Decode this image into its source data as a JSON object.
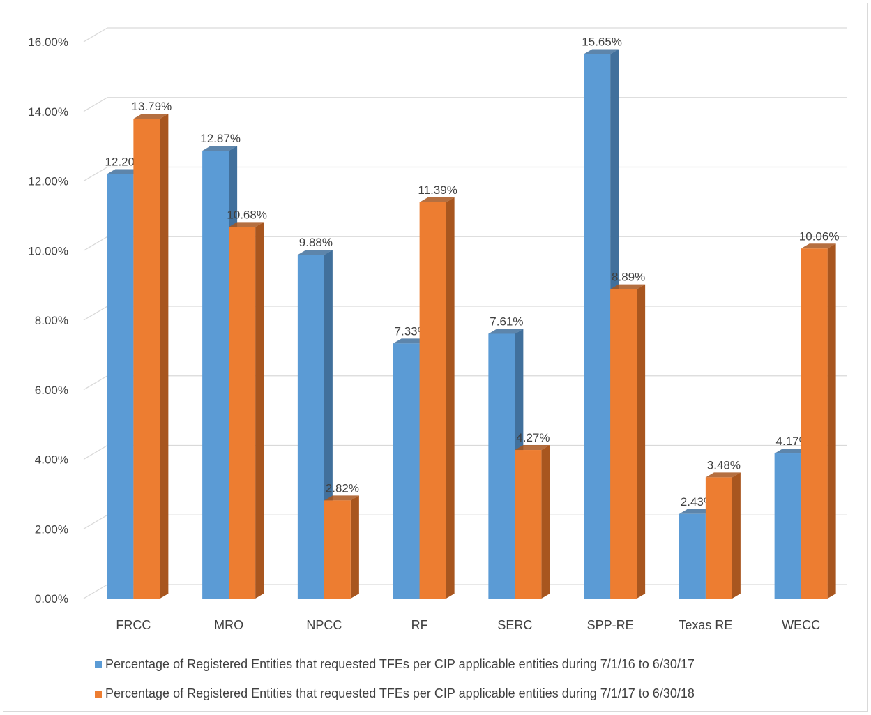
{
  "chart_data": {
    "type": "bar",
    "title": "",
    "xlabel": "",
    "ylabel": "",
    "ylim": [
      0,
      0.16
    ],
    "ytick_step": 0.02,
    "grid": true,
    "legend_position": "bottom",
    "categories": [
      "FRCC",
      "MRO",
      "NPCC",
      "RF",
      "SERC",
      "SPP-RE",
      "Texas RE",
      "WECC"
    ],
    "y_tick_labels": [
      "0.00%",
      "2.00%",
      "4.00%",
      "6.00%",
      "8.00%",
      "10.00%",
      "12.00%",
      "14.00%",
      "16.00%"
    ],
    "series": [
      {
        "name": "Percentage of Registered Entities that requested TFEs per CIP applicable entities during 7/1/16 to 6/30/17",
        "color": "#5B9BD5",
        "side_color": "#41709C",
        "values": [
          0.122,
          0.1287,
          0.0988,
          0.0733,
          0.0761,
          0.1565,
          0.0243,
          0.0417
        ],
        "labels": [
          "12.20%",
          "12.87%",
          "9.88%",
          "7.33%",
          "7.61%",
          "15.65%",
          "2.43%",
          "4.17%"
        ]
      },
      {
        "name": "Percentage of Registered Entities that requested TFEs per CIP applicable entities during 7/1/17 to 6/30/18",
        "color": "#ED7D31",
        "side_color": "#A8561F",
        "values": [
          0.1379,
          0.1068,
          0.0282,
          0.1139,
          0.0427,
          0.0889,
          0.0348,
          0.1006
        ],
        "labels": [
          "13.79%",
          "10.68%",
          "2.82%",
          "11.39%",
          "4.27%",
          "8.89%",
          "3.48%",
          "10.06%"
        ]
      }
    ]
  }
}
